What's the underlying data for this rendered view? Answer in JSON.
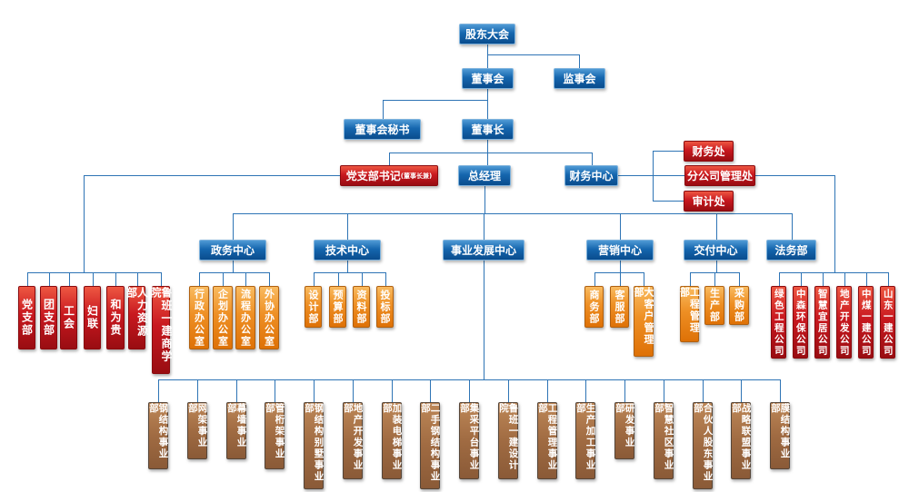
{
  "chart": {
    "governance": {
      "shareholders": "股东大会",
      "board": "董事会",
      "supervisory_board": "监事会",
      "board_secretary": "董事会秘书",
      "chairman": "董事长",
      "party_branch_secretary": "党支部书记",
      "party_branch_secretary_note": "(董事长兼)",
      "general_manager": "总经理",
      "finance_center": "财务中心",
      "finance_office": "财务处",
      "branch_company_admin": "分公司管理处",
      "audit_office": "审计处"
    },
    "centers": [
      "政务中心",
      "技术中心",
      "事业发展中心",
      "营销中心",
      "交付中心",
      "法务部"
    ],
    "party_mass_orgs": [
      "党支部",
      "团支部",
      "工会",
      "妇联",
      "和为贵",
      "人力资源部",
      "鲁班一建商学院"
    ],
    "subsidiaries": [
      "绿色工程公司",
      "中森环保公司",
      "智慧宜居公司",
      "地产开发公司",
      "中煤一建公司",
      "山东一建公司"
    ],
    "admin_offices": [
      "行政办公室",
      "企划办公室",
      "流程办公室",
      "外协办公室"
    ],
    "tech_departments": [
      "设计部",
      "预算部",
      "资料部",
      "投标部"
    ],
    "marketing_departments": [
      "商务部",
      "客服部",
      "大客户管理部"
    ],
    "delivery_departments": [
      "工程管理部",
      "生产部",
      "采购部"
    ],
    "business_units": [
      "钢结构事业部",
      "网架事业部",
      "幕墙事业部",
      "管桁架事业部",
      "钢结构别墅事业部",
      "地产开发事业部",
      "加装电梯事业部",
      "二手钢结构事业部",
      "集采平台事业部",
      "鲁班一建设计院",
      "工程管理事业部",
      "生产加工事业部",
      "研发事业部",
      "智慧社区事业部",
      "合伙人股东事业部",
      "战略联盟事业部",
      "膜结构事业部"
    ]
  },
  "colors": {
    "node_blue": "#1566ae",
    "node_red": "#c8181f",
    "node_orange": "#ee8f24",
    "node_brown": "#a06b42",
    "connector": "#2e74b5",
    "background": "#ffffff"
  }
}
